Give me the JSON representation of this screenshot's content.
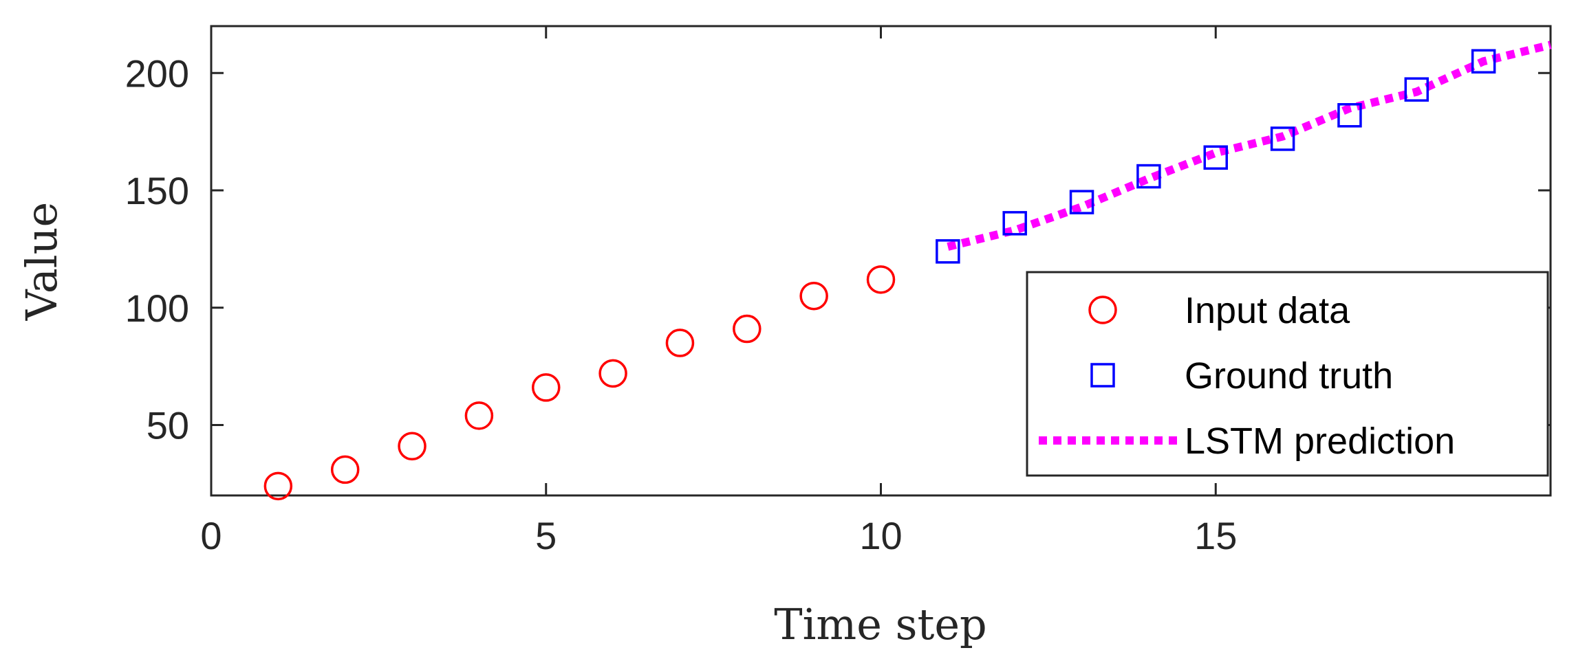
{
  "chart_data": {
    "type": "line",
    "xlabel": "Time step",
    "ylabel": "Value",
    "xlim": [
      0,
      20
    ],
    "ylim": [
      20,
      220
    ],
    "xticks": [
      0,
      5,
      10,
      15
    ],
    "yticks": [
      50,
      100,
      150,
      200
    ],
    "grid": false,
    "legend_position": "lower-right",
    "series": [
      {
        "name": "Input data",
        "style": "marker",
        "marker": "circle",
        "color": "#ff0000",
        "x": [
          1,
          2,
          3,
          4,
          5,
          6,
          7,
          8,
          9,
          10
        ],
        "y": [
          24,
          31,
          41,
          54,
          66,
          72,
          85,
          91,
          105,
          112
        ]
      },
      {
        "name": "Ground truth",
        "style": "marker",
        "marker": "square",
        "color": "#0000ff",
        "x": [
          11,
          12,
          13,
          14,
          15,
          16,
          17,
          18,
          19
        ],
        "y": [
          124,
          136,
          145,
          156,
          164,
          172,
          182,
          193,
          205
        ]
      },
      {
        "name": "LSTM prediction",
        "style": "dotted-line",
        "color": "#ff00ff",
        "x": [
          11,
          12,
          13,
          14,
          15,
          16,
          17,
          18,
          19,
          20
        ],
        "y": [
          126,
          133,
          143,
          155,
          166,
          173,
          185,
          192,
          205,
          212
        ]
      }
    ]
  }
}
